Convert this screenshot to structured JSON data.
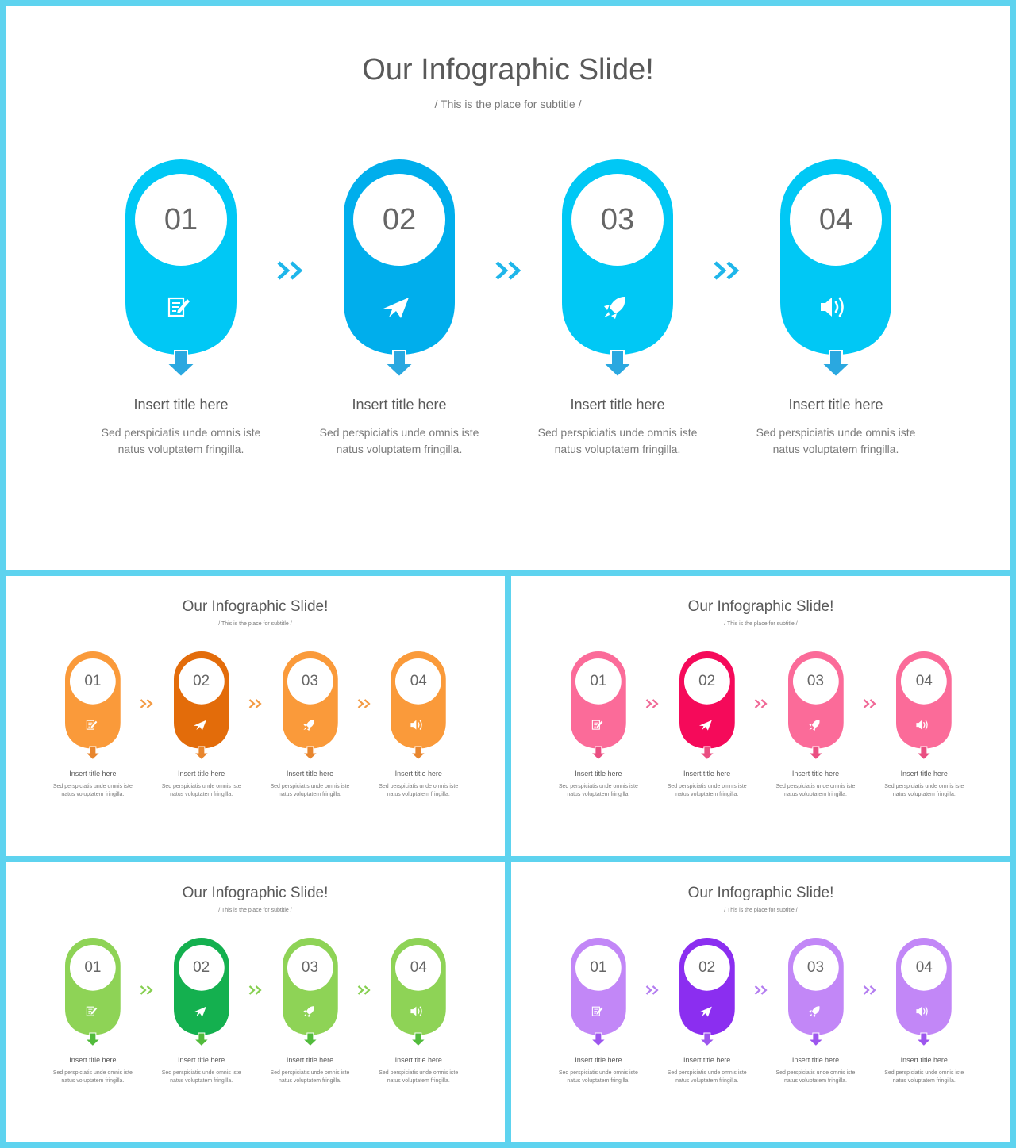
{
  "slide_title": "Our Infographic Slide!",
  "slide_subtitle": "/ This is the place for subtitle /",
  "steps": [
    {
      "number": "01",
      "icon": "document-edit-icon",
      "title": "Insert title here",
      "desc_line1": "Sed perspiciatis unde omnis iste",
      "desc_line2": "natus voluptatem fringilla."
    },
    {
      "number": "02",
      "icon": "paper-plane-icon",
      "title": "Insert title here",
      "desc_line1": "Sed perspiciatis unde omnis iste",
      "desc_line2": "natus voluptatem fringilla."
    },
    {
      "number": "03",
      "icon": "rocket-icon",
      "title": "Insert title here",
      "desc_line1": "Sed perspiciatis unde omnis iste",
      "desc_line2": "natus voluptatem fringilla."
    },
    {
      "number": "04",
      "icon": "speaker-icon",
      "title": "Insert title here",
      "desc_line1": "Sed perspiciatis unde omnis iste",
      "desc_line2": "natus voluptatem fringilla."
    }
  ],
  "themes": {
    "blue": {
      "primary": "#00c8f5",
      "highlight": "#00aeec",
      "chevron": "#1fb6ea",
      "arrow": "#2aa8e0"
    },
    "orange": {
      "primary": "#fa9a3a",
      "highlight": "#e36c0a",
      "chevron": "#f39a43",
      "arrow": "#e8862e"
    },
    "pink": {
      "primary": "#fb6b99",
      "highlight": "#f50a5a",
      "chevron": "#f06896",
      "arrow": "#ea4f82"
    },
    "green": {
      "primary": "#8ed356",
      "highlight": "#14b04f",
      "chevron": "#86cf50",
      "arrow": "#52bb3c"
    },
    "purple": {
      "primary": "#c287f7",
      "highlight": "#8b2ef0",
      "chevron": "#b37cf0",
      "arrow": "#9d56ee"
    }
  },
  "slides": [
    {
      "id": "main",
      "theme": "blue"
    },
    {
      "id": "s1",
      "theme": "orange"
    },
    {
      "id": "s2",
      "theme": "pink"
    },
    {
      "id": "s3",
      "theme": "green"
    },
    {
      "id": "s4",
      "theme": "purple"
    }
  ]
}
